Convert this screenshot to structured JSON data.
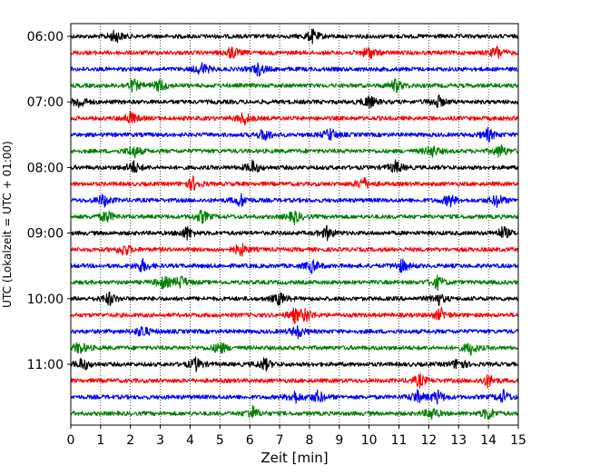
{
  "chart_data": {
    "type": "line",
    "xlabel": "Zeit  [min]",
    "ylabel": "UTC (Lokalzeit = UTC + 01:00)",
    "xlim": [
      0,
      15
    ],
    "x_ticks": [
      "0",
      "1",
      "2",
      "3",
      "4",
      "5",
      "6",
      "7",
      "8",
      "9",
      "10",
      "11",
      "12",
      "13",
      "14",
      "15"
    ],
    "vertical_grid": "dotted",
    "y_tick_labels": [
      "06:00",
      "07:00",
      "08:00",
      "09:00",
      "10:00",
      "11:00"
    ],
    "trace_interval_minutes": 15,
    "color_cycle": [
      "#000000",
      "#ff0000",
      "#0000ff",
      "#008000"
    ],
    "traces": [
      {
        "start": "06:00",
        "events_min": [
          1.5,
          8.1
        ]
      },
      {
        "start": "06:15",
        "events_min": [
          5.4,
          10.0,
          14.3
        ]
      },
      {
        "start": "06:30",
        "events_min": [
          4.4,
          6.3
        ]
      },
      {
        "start": "06:45",
        "events_min": [
          2.1,
          3.0,
          10.9
        ]
      },
      {
        "start": "07:00",
        "events_min": [
          0.3,
          10.0,
          12.3
        ]
      },
      {
        "start": "07:15",
        "events_min": [
          2.0,
          5.8
        ]
      },
      {
        "start": "07:30",
        "events_min": [
          6.5,
          8.7,
          14.0
        ]
      },
      {
        "start": "07:45",
        "events_min": [
          2.1,
          12.1,
          14.4
        ]
      },
      {
        "start": "08:00",
        "events_min": [
          2.1,
          6.1,
          10.9
        ]
      },
      {
        "start": "08:15",
        "events_min": [
          4.1,
          9.8
        ]
      },
      {
        "start": "08:30",
        "events_min": [
          1.1,
          5.7,
          12.7,
          14.3
        ]
      },
      {
        "start": "08:45",
        "events_min": [
          1.2,
          4.4,
          7.5
        ]
      },
      {
        "start": "09:00",
        "events_min": [
          3.9,
          8.6,
          14.5
        ]
      },
      {
        "start": "09:15",
        "events_min": [
          1.8,
          5.7
        ]
      },
      {
        "start": "09:30",
        "events_min": [
          2.4,
          8.1,
          11.1
        ]
      },
      {
        "start": "09:45",
        "events_min": [
          3.1,
          3.7,
          12.3
        ]
      },
      {
        "start": "10:00",
        "events_min": [
          1.3,
          7.0,
          12.3
        ]
      },
      {
        "start": "10:15",
        "events_min": [
          7.5,
          7.9,
          12.4
        ]
      },
      {
        "start": "10:30",
        "events_min": [
          2.4,
          7.6
        ]
      },
      {
        "start": "10:45",
        "events_min": [
          0.3,
          5.0,
          13.4
        ]
      },
      {
        "start": "11:00",
        "events_min": [
          0.4,
          4.2,
          6.5,
          13.0
        ]
      },
      {
        "start": "11:15",
        "events_min": [
          11.7,
          14.0
        ]
      },
      {
        "start": "11:30",
        "events_min": [
          7.5,
          8.3,
          11.6,
          12.3,
          14.5
        ]
      },
      {
        "start": "11:45",
        "events_min": [
          6.1,
          12.1,
          14.0
        ]
      }
    ]
  }
}
